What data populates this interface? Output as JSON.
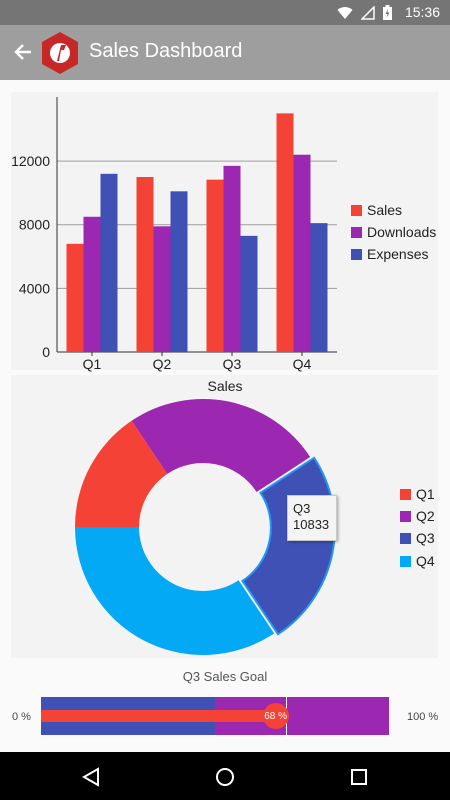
{
  "status_bar": {
    "time": "15:36",
    "icons": [
      "wifi-icon",
      "signal-icon",
      "battery-charging-icon"
    ]
  },
  "toolbar": {
    "title": "Sales Dashboard",
    "back_icon": "arrow-back-icon",
    "logo_icon": "app-logo-icon",
    "logo_color": "#c62828"
  },
  "colors": {
    "sales": "#f44336",
    "downloads": "#9c27b0",
    "expenses": "#3f51b5",
    "q1": "#f44336",
    "q2": "#9c27b0",
    "q3": "#3f51b5",
    "q4": "#03a9f4"
  },
  "chart_data": [
    {
      "type": "bar",
      "categories": [
        "Q1",
        "Q2",
        "Q3",
        "Q4"
      ],
      "series": [
        {
          "name": "Sales",
          "color": "#f44336",
          "values": [
            6800,
            11000,
            10833,
            15000
          ]
        },
        {
          "name": "Downloads",
          "color": "#9c27b0",
          "values": [
            8500,
            7900,
            11700,
            12400
          ]
        },
        {
          "name": "Expenses",
          "color": "#3f51b5",
          "values": [
            11200,
            10100,
            7300,
            8100
          ]
        }
      ],
      "yticks": [
        "0",
        "4000",
        "8000",
        "12000"
      ],
      "ylim": [
        0,
        15400
      ],
      "grid": true,
      "legend": "right"
    },
    {
      "type": "pie",
      "title": "Sales",
      "labels": [
        "Q1",
        "Q2",
        "Q3",
        "Q4"
      ],
      "values": [
        6800,
        11000,
        10833,
        15000
      ],
      "colors": [
        "#f44336",
        "#9c27b0",
        "#3f51b5",
        "#03a9f4"
      ],
      "selected": "Q3",
      "legend": "right",
      "tooltip": {
        "label": "Q3",
        "value": "10833"
      }
    }
  ],
  "sales_goal": {
    "title": "Q3 Sales Goal",
    "min_label": "0 %",
    "max_label": "100 %",
    "value_label": "68 %",
    "progress": 0.68
  },
  "nav_bar": {
    "back_icon": "nav-back-icon",
    "home_icon": "nav-home-icon",
    "recents_icon": "nav-recents-icon"
  }
}
